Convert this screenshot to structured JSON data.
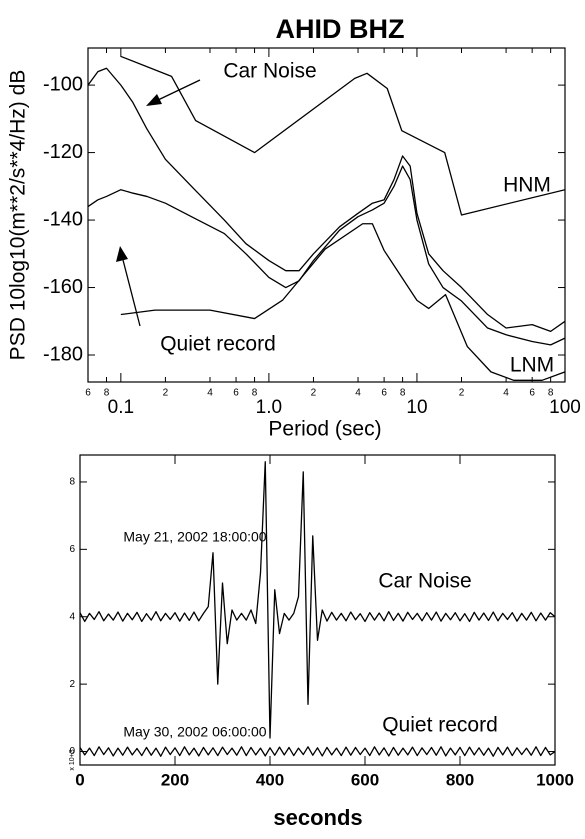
{
  "chart_data": [
    {
      "type": "line",
      "title": "AHID BHZ",
      "xlabel": "Period (sec)",
      "ylabel": "PSD 10log10(m**2/s**4/Hz) dB",
      "log_x": true,
      "xlim": [
        0.06,
        100
      ],
      "ylim": [
        -188,
        -89
      ],
      "xticks": [
        0.1,
        {
          "value": 1,
          "label": "1.0"
        },
        10,
        100
      ],
      "xticks_minor": [
        {
          "value": 0.06,
          "label": "6"
        },
        {
          "value": 0.08,
          "label": "8"
        },
        {
          "value": 0.2,
          "label": "2"
        },
        {
          "value": 0.4,
          "label": "4"
        },
        {
          "value": 0.6,
          "label": "6"
        },
        {
          "value": 0.8,
          "label": "8"
        },
        2,
        4,
        6,
        8,
        {
          "value": 20,
          "label": "2"
        },
        {
          "value": 40,
          "label": "4"
        },
        {
          "value": 60,
          "label": "6"
        },
        {
          "value": 80,
          "label": "8"
        }
      ],
      "yticks": [
        -100,
        -120,
        -140,
        -160,
        -180
      ],
      "series": [
        {
          "name": "HNM",
          "color": "#000000",
          "x": [
            0.1,
            0.22,
            0.32,
            0.8,
            3.8,
            4.6,
            6.3,
            7.9,
            15.4,
            20,
            100
          ],
          "values": [
            -91.5,
            -97.4,
            -110.5,
            -120,
            -98,
            -96.5,
            -101,
            -113.5,
            -120,
            -138.5,
            -131
          ]
        },
        {
          "name": "LNM",
          "color": "#000000",
          "x": [
            0.1,
            0.17,
            0.4,
            0.8,
            1.24,
            2.4,
            4.3,
            5,
            6,
            10,
            12,
            15.6,
            21.9,
            31.6,
            45,
            70,
            100
          ],
          "values": [
            -168,
            -166.7,
            -166.7,
            -169.2,
            -163.7,
            -148.6,
            -141.1,
            -141.1,
            -149,
            -163.8,
            -166.2,
            -162.1,
            -177.5,
            -185,
            -187.5,
            -187.5,
            -185
          ]
        },
        {
          "name": "Car Noise",
          "color": "#000000",
          "x": [
            0.06,
            0.07,
            0.08,
            0.1,
            0.12,
            0.15,
            0.2,
            0.3,
            0.5,
            0.7,
            1,
            1.3,
            1.6,
            2,
            3,
            4,
            5,
            6,
            7,
            8,
            9,
            10,
            12,
            15,
            20,
            30,
            40,
            60,
            80,
            100
          ],
          "values": [
            -100,
            -96,
            -95,
            -100,
            -105,
            -113,
            -122,
            -130,
            -140,
            -147,
            -152,
            -155,
            -155,
            -150,
            -142,
            -138,
            -135,
            -134,
            -128,
            -121,
            -124,
            -138,
            -150,
            -155,
            -160,
            -168,
            -172,
            -171,
            -173,
            -170
          ]
        },
        {
          "name": "Quiet record",
          "color": "#000000",
          "x": [
            0.06,
            0.07,
            0.08,
            0.1,
            0.12,
            0.15,
            0.2,
            0.3,
            0.5,
            0.7,
            1,
            1.3,
            1.6,
            2,
            3,
            4,
            5,
            6,
            7,
            8,
            9,
            10,
            12,
            15,
            20,
            30,
            40,
            60,
            80,
            100
          ],
          "values": [
            -136,
            -134,
            -133,
            -131,
            -132,
            -133,
            -135,
            -139,
            -144,
            -150,
            -157,
            -160,
            -158,
            -152,
            -143,
            -139,
            -137,
            -135,
            -130,
            -124,
            -128,
            -140,
            -153,
            -160,
            -164,
            -172,
            -174,
            -176,
            -177,
            -175
          ]
        }
      ]
    },
    {
      "type": "line",
      "xlabel": "seconds",
      "y_multiplier": "x 10+3",
      "xlim": [
        0,
        1000
      ],
      "ylim": [
        -0.4,
        8.8
      ],
      "xticks": [
        0,
        200,
        400,
        600,
        800,
        1000
      ],
      "yticks": [
        0,
        2,
        4,
        6,
        8
      ],
      "annotations": [
        "May 21, 2002 18:00:00",
        "May 30, 2002 06:00:00"
      ],
      "x": [
        0,
        10,
        20,
        30,
        40,
        50,
        60,
        70,
        80,
        90,
        100,
        110,
        120,
        130,
        140,
        150,
        160,
        170,
        180,
        190,
        200,
        210,
        220,
        230,
        240,
        250,
        260,
        270,
        280,
        290,
        300,
        310,
        320,
        330,
        340,
        350,
        360,
        370,
        380,
        390,
        400,
        410,
        420,
        430,
        440,
        450,
        460,
        470,
        480,
        490,
        500,
        510,
        520,
        530,
        540,
        550,
        560,
        570,
        580,
        590,
        600,
        610,
        620,
        630,
        640,
        650,
        660,
        670,
        680,
        690,
        700,
        710,
        720,
        730,
        740,
        750,
        760,
        770,
        780,
        790,
        800,
        810,
        820,
        830,
        840,
        850,
        860,
        870,
        880,
        890,
        900,
        910,
        920,
        930,
        940,
        950,
        960,
        970,
        980,
        990,
        1000
      ],
      "series": [
        {
          "name": "Car Noise",
          "color": "#000000",
          "values": [
            4.12,
            3.86,
            4.1,
            3.92,
            4.15,
            3.88,
            4.08,
            3.9,
            4.14,
            3.87,
            4.1,
            3.91,
            4.13,
            3.86,
            4.09,
            3.9,
            4.15,
            3.88,
            4.1,
            3.92,
            4.12,
            3.87,
            4.11,
            3.89,
            4.14,
            3.88,
            4.1,
            4.3,
            5.9,
            2.0,
            5.0,
            3.2,
            4.2,
            3.9,
            4.1,
            3.9,
            4.2,
            3.8,
            5.3,
            8.6,
            0.4,
            4.8,
            3.5,
            4.1,
            3.9,
            4.1,
            4.6,
            8.3,
            1.4,
            6.4,
            3.3,
            4.2,
            3.87,
            4.13,
            3.9,
            4.1,
            3.88,
            4.14,
            3.91,
            4.09,
            3.86,
            4.12,
            3.9,
            4.11,
            3.88,
            4.15,
            3.89,
            4.1,
            3.87,
            4.13,
            3.92,
            4.1,
            3.88,
            4.12,
            3.9,
            4.14,
            3.87,
            4.1,
            3.91,
            4.12,
            3.88,
            4.09,
            3.86,
            4.13,
            3.9,
            4.11,
            3.89,
            4.14,
            3.88,
            4.1,
            3.92,
            4.12,
            3.87,
            4.1,
            3.9,
            4.13,
            3.88,
            4.11,
            3.9,
            4.12,
            4.0
          ]
        },
        {
          "name": "Quiet record",
          "color": "#000000",
          "values": [
            0.12,
            -0.1,
            0.1,
            -0.12,
            0.14,
            -0.09,
            0.11,
            -0.13,
            0.1,
            -0.11,
            0.13,
            -0.1,
            0.09,
            -0.12,
            0.12,
            -0.11,
            0.1,
            -0.14,
            0.13,
            -0.09,
            0.11,
            -0.12,
            0.14,
            -0.1,
            0.1,
            -0.13,
            0.12,
            -0.1,
            0.11,
            -0.12,
            0.13,
            -0.09,
            0.1,
            -0.11,
            0.14,
            -0.12,
            0.12,
            -0.1,
            0.1,
            -0.13,
            0.11,
            -0.11,
            0.13,
            -0.1,
            0.12,
            -0.12,
            0.1,
            -0.09,
            0.14,
            -0.11,
            0.11,
            -0.13,
            0.12,
            -0.1,
            0.1,
            -0.12,
            0.13,
            -0.11,
            0.12,
            -0.09,
            0.1,
            -0.12,
            0.14,
            -0.1,
            0.11,
            -0.13,
            0.12,
            -0.11,
            0.1,
            -0.1,
            0.13,
            -0.12,
            0.11,
            -0.09,
            0.12,
            -0.11,
            0.14,
            -0.13,
            0.1,
            -0.1,
            0.12,
            -0.12,
            0.13,
            -0.1,
            0.11,
            -0.11,
            0.1,
            -0.14,
            0.12,
            -0.1,
            0.13,
            -0.12,
            0.11,
            -0.09,
            0.1,
            -0.11,
            0.14,
            -0.12,
            0.12,
            -0.1,
            0.0
          ]
        }
      ]
    }
  ]
}
